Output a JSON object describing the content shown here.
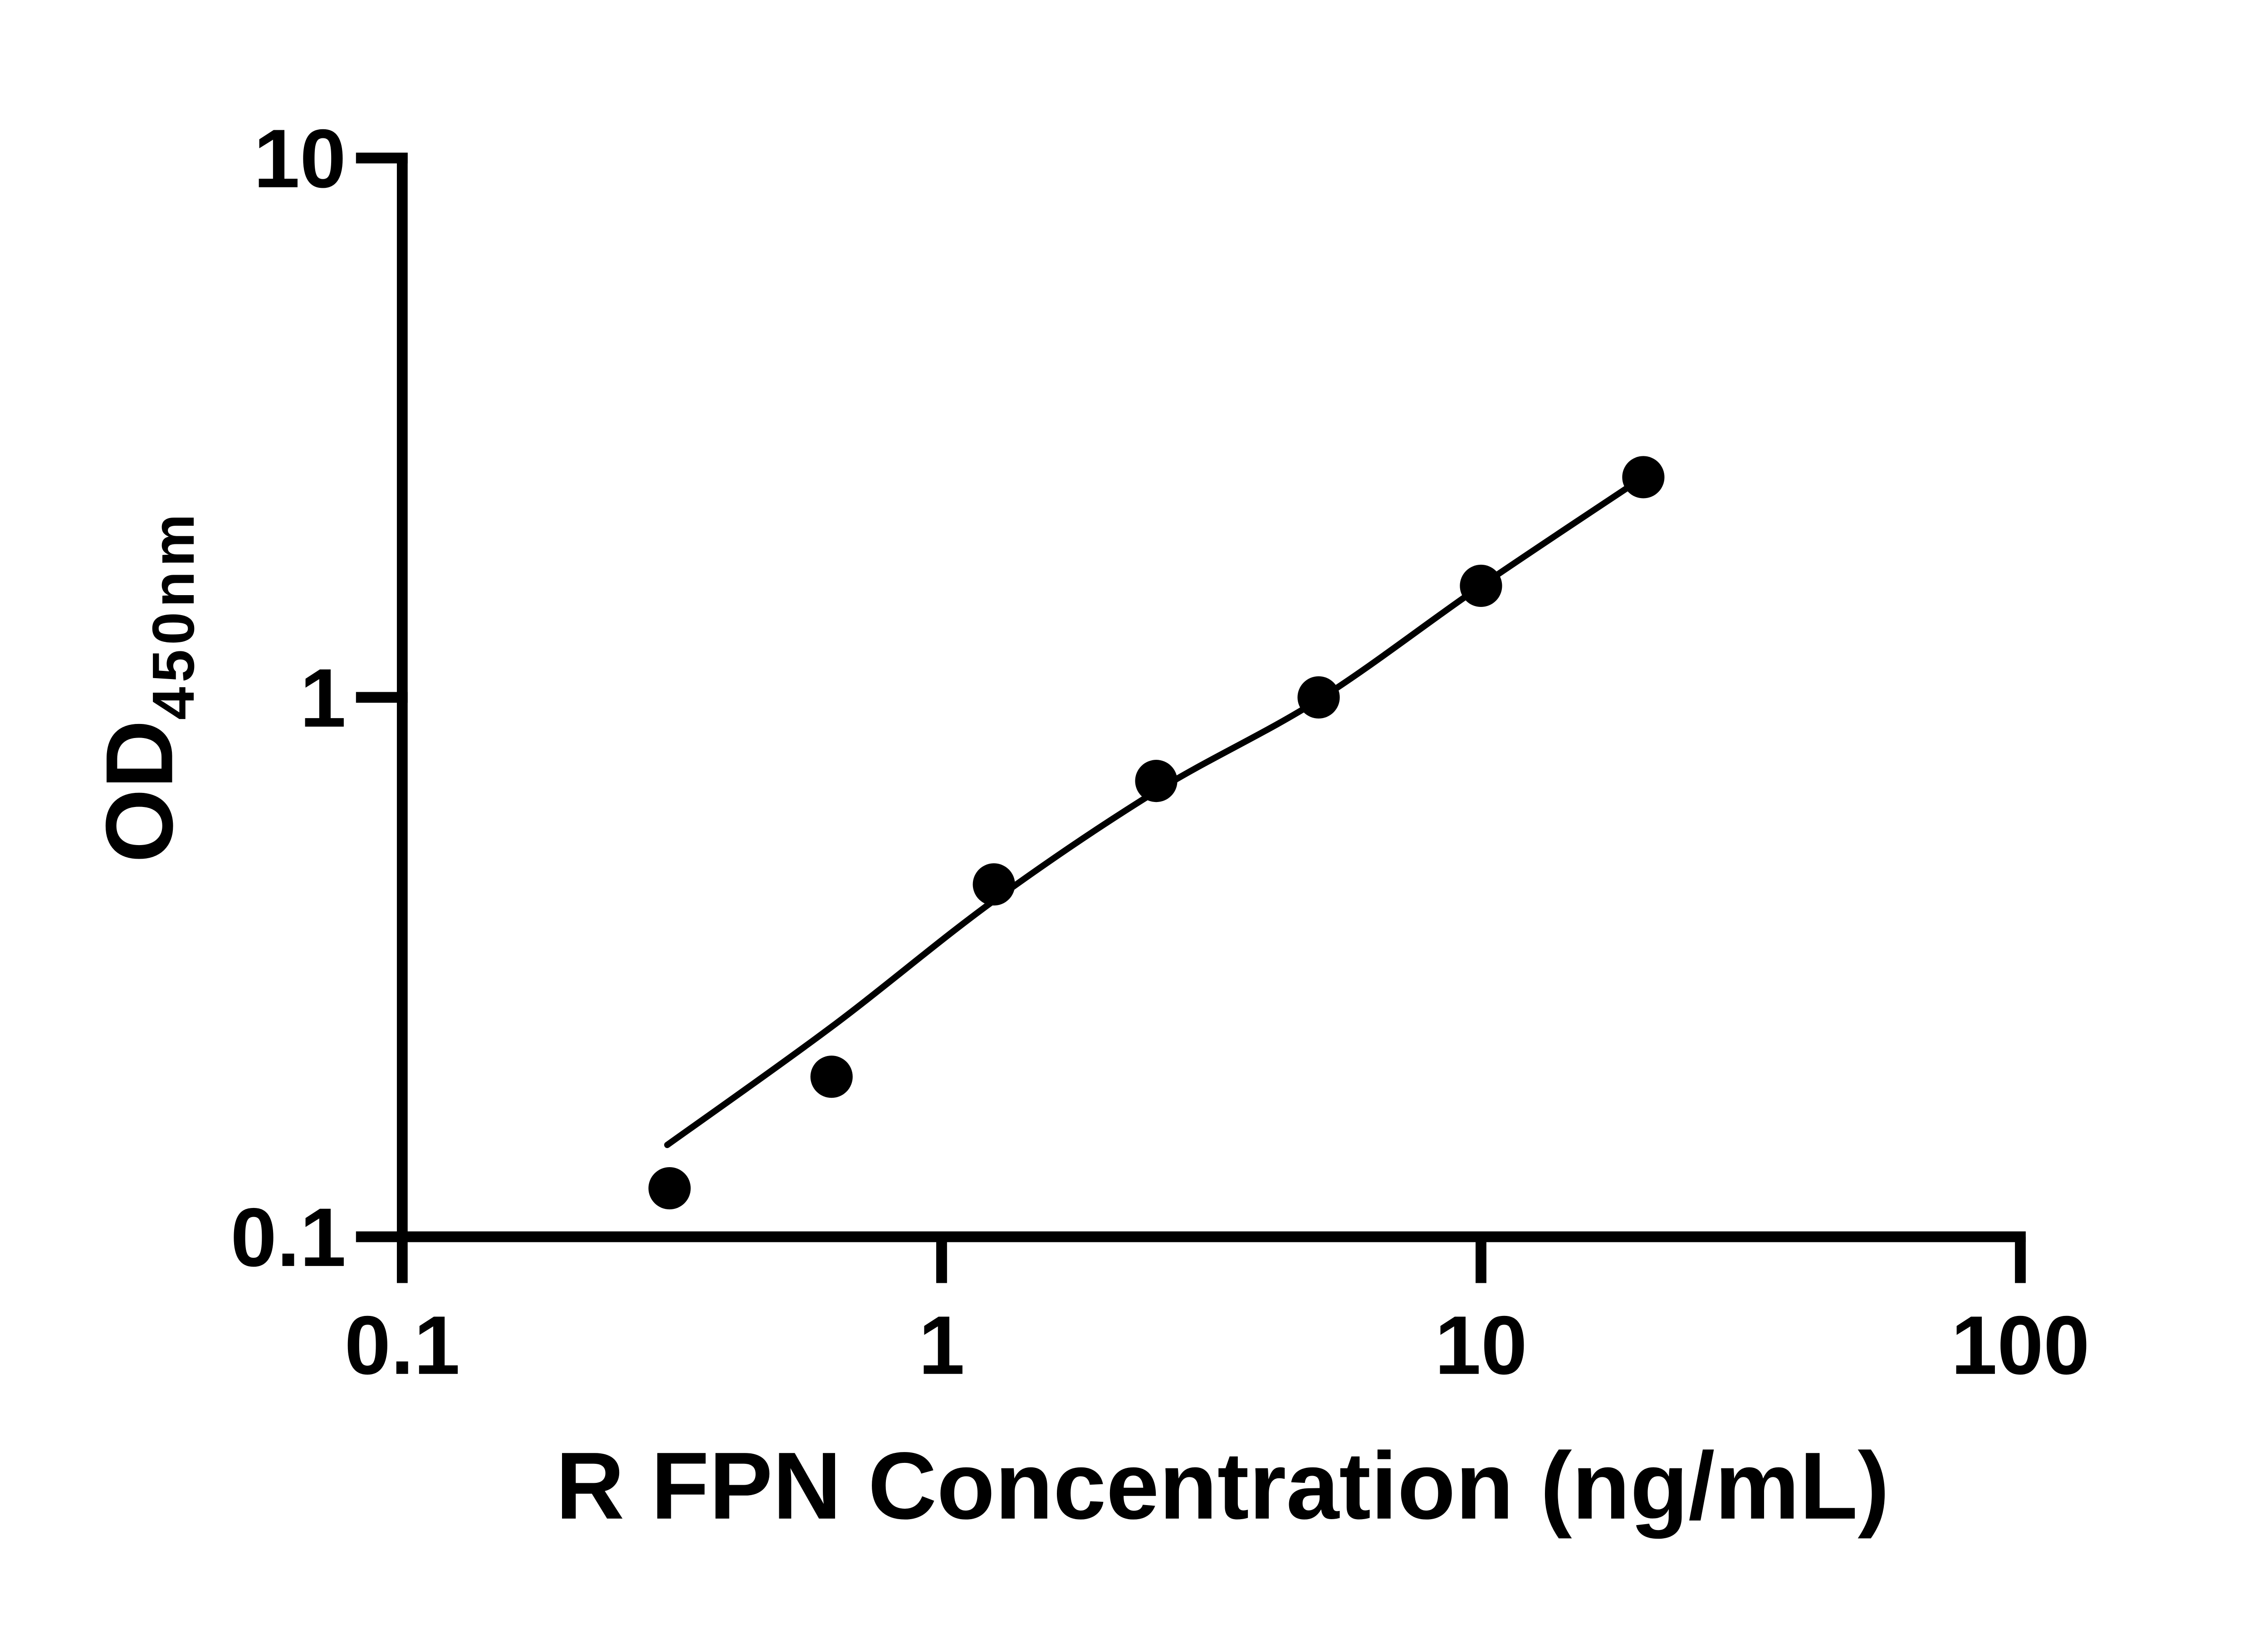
{
  "chart_data": {
    "type": "scatter",
    "title": "",
    "xlabel": "R FPN Concentration (ng/mL)",
    "ylabel": "OD450nm",
    "ylabel_main": "OD",
    "ylabel_sub": "450nm",
    "x_scale": "log10",
    "y_scale": "log10",
    "xlim": [
      0.1,
      100
    ],
    "ylim": [
      0.1,
      10
    ],
    "x_ticks": [
      0.1,
      1,
      10,
      100
    ],
    "x_tick_labels": [
      "0.1",
      "1",
      "10",
      "100"
    ],
    "y_ticks": [
      0.1,
      1,
      10
    ],
    "y_tick_labels": [
      "0.1",
      "1",
      "10"
    ],
    "grid": false,
    "legend": false,
    "ink_color": "#000000",
    "background_color": "#ffffff",
    "series": [
      {
        "marker": "filled-circle",
        "color": "#000000",
        "points": [
          {
            "x": 0.313,
            "y": 0.123
          },
          {
            "x": 0.625,
            "y": 0.198
          },
          {
            "x": 1.25,
            "y": 0.45
          },
          {
            "x": 2.5,
            "y": 0.7
          },
          {
            "x": 5,
            "y": 1.0
          },
          {
            "x": 10,
            "y": 1.61
          },
          {
            "x": 20,
            "y": 2.56
          }
        ]
      }
    ],
    "fit_curve": {
      "points": [
        [
          0.31,
          0.148
        ],
        [
          0.625,
          0.245
        ],
        [
          1.25,
          0.42
        ],
        [
          2.5,
          0.67
        ],
        [
          5,
          0.99
        ],
        [
          10,
          1.61
        ],
        [
          20,
          2.56
        ]
      ]
    }
  }
}
